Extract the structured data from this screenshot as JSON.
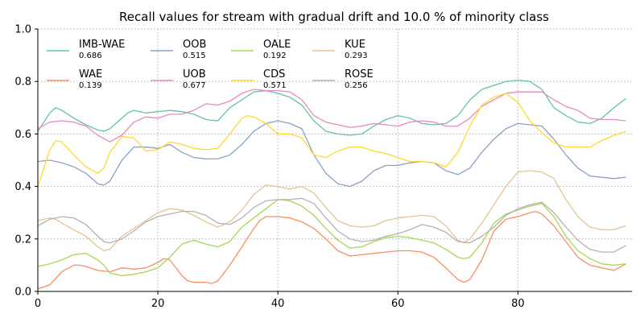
{
  "chart_data": {
    "type": "line",
    "title": "Recall values for stream with gradual drift and 10.0 % of minority class",
    "xlabel": "",
    "ylabel": "",
    "xlim": [
      0,
      99
    ],
    "ylim": [
      0,
      1.0
    ],
    "x_ticks": [
      0,
      20,
      40,
      60,
      80
    ],
    "y_ticks": [
      0.0,
      0.2,
      0.4,
      0.6,
      0.8,
      1.0
    ],
    "x_tick_labels": [
      "0",
      "20",
      "40",
      "60",
      "80"
    ],
    "y_tick_labels": [
      "0.0",
      "0.2",
      "0.4",
      "0.6",
      "0.8",
      "1.0"
    ],
    "grid": true,
    "legend_placement": "top-left, 4 columns",
    "series": [
      {
        "name": "IMB-WAE",
        "score": "0.686",
        "color": "#66c2a5",
        "x": [
          0,
          2,
          3,
          4,
          6,
          8,
          10,
          11,
          12,
          14,
          15,
          16,
          18,
          20,
          22,
          24,
          26,
          28,
          30,
          32,
          34,
          36,
          38,
          40,
          42,
          44,
          46,
          48,
          50,
          52,
          54,
          56,
          58,
          60,
          62,
          64,
          66,
          68,
          70,
          72,
          74,
          76,
          78,
          80,
          82,
          83,
          84,
          86,
          88,
          90,
          92,
          94,
          96,
          98
        ],
        "y": [
          0.61,
          0.68,
          0.7,
          0.69,
          0.66,
          0.635,
          0.615,
          0.61,
          0.62,
          0.66,
          0.68,
          0.69,
          0.68,
          0.685,
          0.69,
          0.685,
          0.675,
          0.655,
          0.65,
          0.7,
          0.73,
          0.76,
          0.765,
          0.755,
          0.74,
          0.71,
          0.65,
          0.61,
          0.6,
          0.595,
          0.6,
          0.63,
          0.655,
          0.67,
          0.66,
          0.64,
          0.635,
          0.64,
          0.67,
          0.73,
          0.77,
          0.785,
          0.8,
          0.805,
          0.8,
          0.785,
          0.77,
          0.7,
          0.67,
          0.645,
          0.64,
          0.66,
          0.7,
          0.735
        ]
      },
      {
        "name": "WAE",
        "score": "0.139",
        "color": "#fc8d62",
        "x": [
          0,
          2,
          3,
          4,
          6,
          7,
          8,
          10,
          12,
          14,
          16,
          18,
          20,
          21,
          22,
          24,
          25,
          26,
          28,
          29,
          30,
          32,
          34,
          36,
          37,
          38,
          40,
          42,
          44,
          46,
          48,
          50,
          52,
          54,
          56,
          58,
          60,
          62,
          64,
          66,
          68,
          70,
          71,
          72,
          74,
          76,
          78,
          80,
          82,
          83,
          84,
          86,
          88,
          90,
          92,
          94,
          96,
          98
        ],
        "y": [
          0.01,
          0.025,
          0.05,
          0.075,
          0.1,
          0.1,
          0.095,
          0.08,
          0.075,
          0.09,
          0.085,
          0.09,
          0.11,
          0.125,
          0.12,
          0.06,
          0.04,
          0.035,
          0.035,
          0.03,
          0.04,
          0.1,
          0.17,
          0.24,
          0.27,
          0.285,
          0.285,
          0.28,
          0.265,
          0.24,
          0.2,
          0.155,
          0.135,
          0.14,
          0.145,
          0.15,
          0.155,
          0.155,
          0.15,
          0.13,
          0.09,
          0.045,
          0.035,
          0.045,
          0.12,
          0.23,
          0.275,
          0.285,
          0.3,
          0.305,
          0.295,
          0.25,
          0.19,
          0.13,
          0.1,
          0.09,
          0.08,
          0.105
        ]
      },
      {
        "name": "OOB",
        "score": "0.515",
        "color": "#8da0cb",
        "x": [
          0,
          2,
          4,
          6,
          8,
          10,
          11,
          12,
          14,
          16,
          18,
          20,
          22,
          24,
          26,
          28,
          30,
          32,
          34,
          36,
          38,
          40,
          42,
          44,
          46,
          48,
          50,
          52,
          54,
          56,
          58,
          60,
          62,
          64,
          66,
          68,
          70,
          72,
          74,
          76,
          78,
          80,
          82,
          84,
          86,
          88,
          90,
          92,
          94,
          96,
          98
        ],
        "y": [
          0.495,
          0.5,
          0.49,
          0.475,
          0.45,
          0.41,
          0.405,
          0.42,
          0.5,
          0.55,
          0.55,
          0.545,
          0.56,
          0.53,
          0.51,
          0.505,
          0.505,
          0.52,
          0.56,
          0.61,
          0.64,
          0.65,
          0.64,
          0.62,
          0.52,
          0.45,
          0.41,
          0.4,
          0.42,
          0.46,
          0.48,
          0.48,
          0.49,
          0.495,
          0.49,
          0.46,
          0.445,
          0.47,
          0.53,
          0.58,
          0.62,
          0.64,
          0.635,
          0.63,
          0.58,
          0.52,
          0.47,
          0.44,
          0.435,
          0.43,
          0.435
        ]
      },
      {
        "name": "UOB",
        "score": "0.677",
        "color": "#e78ac3",
        "x": [
          0,
          2,
          4,
          6,
          8,
          10,
          12,
          14,
          16,
          18,
          20,
          22,
          24,
          26,
          28,
          30,
          32,
          34,
          36,
          38,
          40,
          42,
          44,
          46,
          48,
          50,
          52,
          54,
          56,
          58,
          60,
          62,
          64,
          66,
          68,
          70,
          72,
          74,
          76,
          78,
          80,
          82,
          84,
          86,
          88,
          90,
          92,
          94,
          96,
          98
        ],
        "y": [
          0.62,
          0.645,
          0.65,
          0.645,
          0.63,
          0.595,
          0.57,
          0.595,
          0.645,
          0.665,
          0.66,
          0.675,
          0.675,
          0.69,
          0.715,
          0.71,
          0.725,
          0.755,
          0.77,
          0.765,
          0.765,
          0.76,
          0.73,
          0.67,
          0.645,
          0.635,
          0.625,
          0.63,
          0.64,
          0.635,
          0.63,
          0.645,
          0.65,
          0.645,
          0.63,
          0.63,
          0.66,
          0.705,
          0.73,
          0.755,
          0.76,
          0.76,
          0.76,
          0.73,
          0.705,
          0.69,
          0.66,
          0.655,
          0.655,
          0.65
        ]
      },
      {
        "name": "OALE",
        "score": "0.192",
        "color": "#a6d854",
        "x": [
          0,
          2,
          4,
          6,
          8,
          10,
          11,
          12,
          14,
          16,
          18,
          20,
          22,
          24,
          26,
          28,
          30,
          32,
          34,
          36,
          38,
          40,
          42,
          44,
          46,
          48,
          50,
          52,
          54,
          56,
          58,
          60,
          62,
          64,
          66,
          68,
          70,
          71,
          72,
          74,
          76,
          78,
          80,
          82,
          84,
          86,
          88,
          90,
          92,
          94,
          96,
          98
        ],
        "y": [
          0.095,
          0.105,
          0.12,
          0.14,
          0.145,
          0.12,
          0.1,
          0.07,
          0.06,
          0.065,
          0.075,
          0.09,
          0.13,
          0.18,
          0.195,
          0.18,
          0.17,
          0.19,
          0.245,
          0.28,
          0.315,
          0.35,
          0.345,
          0.325,
          0.29,
          0.24,
          0.195,
          0.165,
          0.17,
          0.19,
          0.205,
          0.21,
          0.205,
          0.195,
          0.185,
          0.16,
          0.13,
          0.125,
          0.13,
          0.185,
          0.26,
          0.295,
          0.31,
          0.325,
          0.335,
          0.285,
          0.21,
          0.155,
          0.125,
          0.105,
          0.1,
          0.105
        ]
      },
      {
        "name": "CDS",
        "score": "0.571",
        "color": "#ffd92f",
        "x": [
          0,
          2,
          3,
          4,
          6,
          8,
          10,
          11,
          12,
          14,
          16,
          18,
          20,
          22,
          24,
          26,
          28,
          30,
          32,
          34,
          35,
          36,
          38,
          40,
          42,
          44,
          46,
          48,
          50,
          52,
          54,
          56,
          58,
          60,
          62,
          64,
          66,
          68,
          70,
          72,
          74,
          76,
          78,
          80,
          82,
          84,
          86,
          88,
          90,
          92,
          94,
          96,
          98
        ],
        "y": [
          0.4,
          0.54,
          0.575,
          0.57,
          0.52,
          0.475,
          0.45,
          0.47,
          0.53,
          0.59,
          0.585,
          0.535,
          0.54,
          0.57,
          0.56,
          0.545,
          0.54,
          0.545,
          0.6,
          0.66,
          0.67,
          0.665,
          0.64,
          0.6,
          0.6,
          0.585,
          0.52,
          0.51,
          0.535,
          0.55,
          0.55,
          0.535,
          0.525,
          0.51,
          0.495,
          0.495,
          0.49,
          0.475,
          0.53,
          0.63,
          0.71,
          0.74,
          0.755,
          0.72,
          0.65,
          0.605,
          0.565,
          0.55,
          0.55,
          0.55,
          0.575,
          0.595,
          0.61
        ]
      },
      {
        "name": "KUE",
        "score": "0.293",
        "color": "#e5c494",
        "x": [
          0,
          2,
          3,
          4,
          6,
          8,
          10,
          11,
          12,
          14,
          16,
          18,
          20,
          22,
          24,
          26,
          28,
          30,
          32,
          34,
          36,
          38,
          40,
          42,
          44,
          46,
          48,
          50,
          52,
          54,
          56,
          58,
          60,
          62,
          64,
          66,
          68,
          70,
          71,
          72,
          74,
          76,
          78,
          80,
          82,
          84,
          86,
          88,
          90,
          92,
          94,
          96,
          98
        ],
        "y": [
          0.27,
          0.28,
          0.275,
          0.26,
          0.235,
          0.21,
          0.17,
          0.155,
          0.16,
          0.21,
          0.24,
          0.27,
          0.3,
          0.315,
          0.31,
          0.29,
          0.265,
          0.245,
          0.265,
          0.31,
          0.37,
          0.405,
          0.4,
          0.39,
          0.4,
          0.375,
          0.32,
          0.27,
          0.25,
          0.245,
          0.25,
          0.27,
          0.28,
          0.285,
          0.29,
          0.285,
          0.25,
          0.195,
          0.185,
          0.2,
          0.26,
          0.33,
          0.4,
          0.455,
          0.46,
          0.455,
          0.43,
          0.35,
          0.285,
          0.245,
          0.235,
          0.235,
          0.25
        ]
      },
      {
        "name": "ROSE",
        "score": "0.256",
        "color": "#b3b3b3",
        "x": [
          0,
          2,
          4,
          6,
          8,
          10,
          11,
          12,
          14,
          16,
          18,
          20,
          22,
          24,
          26,
          28,
          30,
          32,
          34,
          36,
          38,
          40,
          42,
          44,
          46,
          48,
          50,
          52,
          54,
          56,
          58,
          60,
          62,
          64,
          66,
          68,
          70,
          72,
          74,
          76,
          78,
          80,
          82,
          84,
          86,
          88,
          90,
          92,
          94,
          96,
          98
        ],
        "y": [
          0.25,
          0.275,
          0.285,
          0.28,
          0.255,
          0.21,
          0.19,
          0.185,
          0.2,
          0.23,
          0.265,
          0.285,
          0.295,
          0.305,
          0.305,
          0.29,
          0.26,
          0.255,
          0.28,
          0.32,
          0.345,
          0.35,
          0.35,
          0.355,
          0.335,
          0.28,
          0.23,
          0.2,
          0.19,
          0.195,
          0.21,
          0.22,
          0.235,
          0.255,
          0.245,
          0.225,
          0.19,
          0.185,
          0.21,
          0.245,
          0.29,
          0.315,
          0.33,
          0.34,
          0.3,
          0.245,
          0.195,
          0.16,
          0.15,
          0.15,
          0.175
        ]
      }
    ]
  }
}
